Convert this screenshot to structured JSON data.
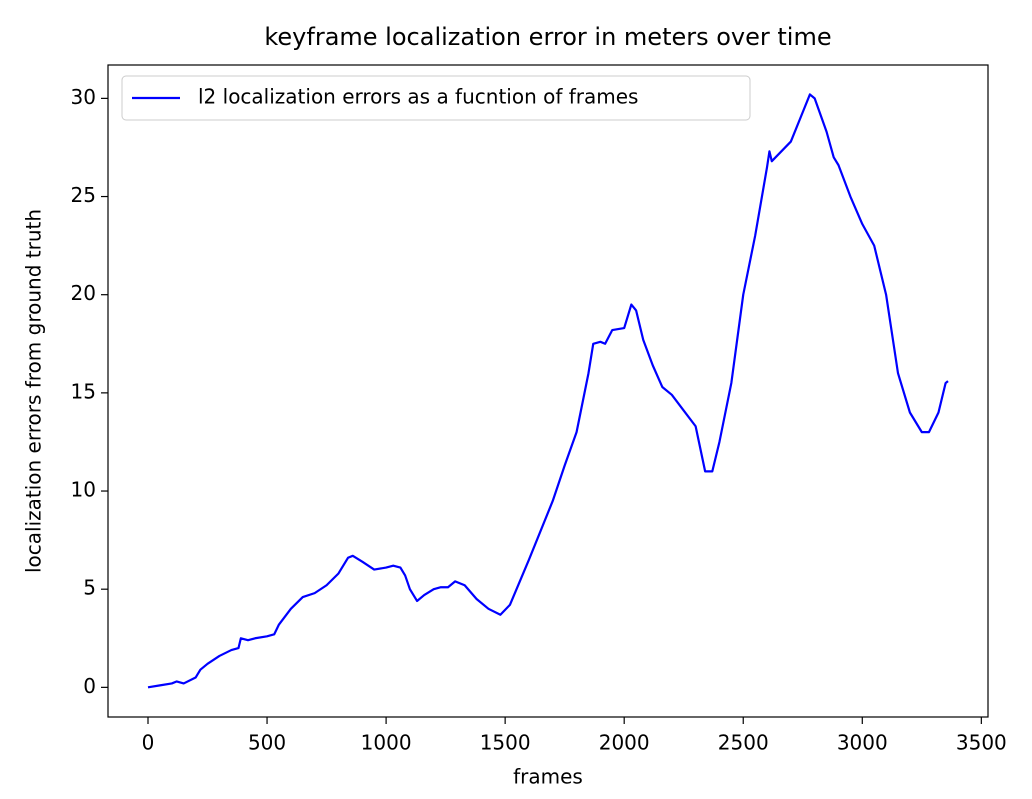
{
  "chart_data": {
    "type": "line",
    "title": "keyframe localization error in meters over time",
    "x_label": "frames",
    "y_label": "localization errors from ground truth",
    "x": [
      0,
      50,
      100,
      120,
      150,
      200,
      220,
      250,
      300,
      350,
      380,
      390,
      420,
      450,
      500,
      530,
      550,
      600,
      650,
      700,
      750,
      800,
      840,
      860,
      900,
      950,
      1000,
      1030,
      1060,
      1080,
      1100,
      1130,
      1160,
      1200,
      1230,
      1260,
      1290,
      1330,
      1380,
      1430,
      1480,
      1520,
      1600,
      1700,
      1750,
      1800,
      1850,
      1870,
      1900,
      1920,
      1950,
      2000,
      2030,
      2050,
      2080,
      2120,
      2160,
      2200,
      2250,
      2300,
      2340,
      2370,
      2400,
      2450,
      2500,
      2550,
      2600,
      2610,
      2620,
      2700,
      2750,
      2780,
      2800,
      2850,
      2880,
      2900,
      2950,
      3000,
      3050,
      3100,
      3150,
      3200,
      3250,
      3280,
      3320,
      3350,
      3360
    ],
    "series": [
      {
        "name": "l2 localization errors as a fucntion of frames",
        "color": "#0000ff",
        "values": [
          0,
          0.1,
          0.2,
          0.3,
          0.2,
          0.5,
          0.9,
          1.2,
          1.6,
          1.9,
          2.0,
          2.5,
          2.4,
          2.5,
          2.6,
          2.7,
          3.2,
          4.0,
          4.6,
          4.8,
          5.2,
          5.8,
          6.6,
          6.7,
          6.4,
          6.0,
          6.1,
          6.2,
          6.1,
          5.7,
          5.0,
          4.4,
          4.7,
          5.0,
          5.1,
          5.1,
          5.4,
          5.2,
          4.5,
          4.0,
          3.7,
          4.2,
          6.5,
          9.5,
          11.3,
          13.0,
          16.0,
          17.5,
          17.6,
          17.5,
          18.2,
          18.3,
          19.5,
          19.2,
          17.7,
          16.4,
          15.3,
          14.9,
          14.1,
          13.3,
          11.0,
          11.0,
          12.5,
          15.5,
          20.0,
          23.0,
          26.5,
          27.3,
          26.8,
          27.8,
          29.3,
          30.2,
          30.0,
          28.3,
          27.0,
          26.6,
          25.0,
          23.6,
          22.5,
          20.0,
          16.0,
          14.0,
          13.0,
          13.0,
          14.0,
          15.5,
          15.6
        ]
      }
    ],
    "xlim": [
      -168,
      3528
    ],
    "ylim": [
      -1.51,
      31.7
    ],
    "xticks": [
      0,
      500,
      1000,
      1500,
      2000,
      2500,
      3000,
      3500
    ],
    "yticks": [
      0,
      5,
      10,
      15,
      20,
      25,
      30
    ],
    "legend": "upper left"
  }
}
